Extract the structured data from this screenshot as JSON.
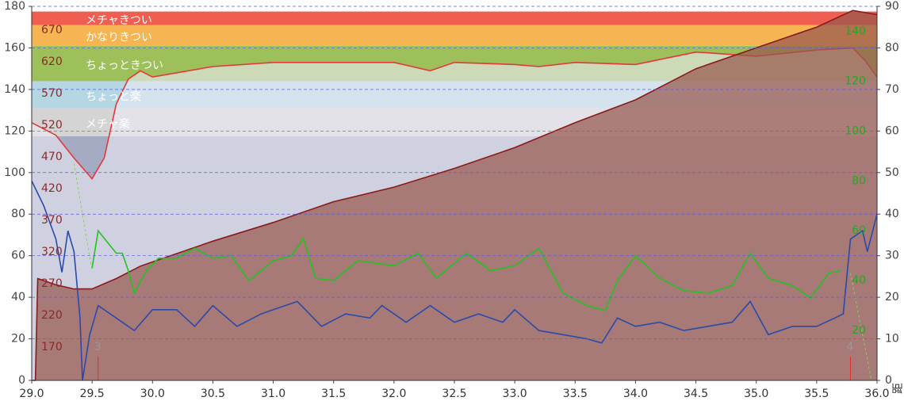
{
  "chart_data": {
    "type": "multi-line",
    "x_label": "距",
    "xlim": [
      29.0,
      36.0
    ],
    "xticks": [
      {
        "value": 29.0,
        "label": "29.0"
      },
      {
        "value": 29.5,
        "label": "29.5"
      },
      {
        "value": 30.0,
        "label": "30.0"
      },
      {
        "value": 30.5,
        "label": "30.5"
      },
      {
        "value": 31.0,
        "label": "31.0"
      },
      {
        "value": 31.5,
        "label": "31.5"
      },
      {
        "value": 32.0,
        "label": "32.0"
      },
      {
        "value": 32.5,
        "label": "32.5"
      },
      {
        "value": 33.0,
        "label": "33.0"
      },
      {
        "value": 33.5,
        "label": "33.5"
      },
      {
        "value": 34.0,
        "label": "34.0"
      },
      {
        "value": 34.5,
        "label": "34.5"
      },
      {
        "value": 35.0,
        "label": "35.0"
      },
      {
        "value": 35.5,
        "label": "35.5"
      },
      {
        "value": 36.0,
        "label": "36.0"
      }
    ],
    "ylim": [
      0,
      180
    ],
    "yticks": [
      0,
      20,
      40,
      60,
      80,
      100,
      120,
      140,
      160,
      180
    ],
    "y2lim": [
      0,
      90
    ],
    "y2ticks": [
      0,
      10,
      20,
      30,
      40,
      50,
      60,
      70,
      80,
      90
    ],
    "y3lim": [
      0,
      150
    ],
    "y3ticks": [
      20,
      40,
      60,
      80,
      100,
      120,
      140
    ],
    "y3color": "#22aa22",
    "y4lim": [
      117.5,
      707.5
    ],
    "y4ticks": [
      170,
      220,
      270,
      320,
      370,
      420,
      470,
      520,
      570,
      620,
      670
    ],
    "y4color": "#8b2a2a",
    "grid": true,
    "zones": [
      {
        "label": "メチャ楽",
        "from": 117.5,
        "to": 131,
        "color": "#d4d4d4"
      },
      {
        "label": "ちょっと楽",
        "from": 131,
        "to": 144,
        "color": "#b5d7e4"
      },
      {
        "label": "ちょっときつい",
        "from": 144,
        "to": 161,
        "color": "#9dc05a"
      },
      {
        "label": "かなりきつい",
        "from": 161,
        "to": 171,
        "color": "#f6b452"
      },
      {
        "label": "メチャきつい",
        "from": 171,
        "to": 177.5,
        "color": "#ef5e50"
      }
    ],
    "markers": [
      {
        "x": 29.55,
        "label": "3"
      },
      {
        "x": 35.78,
        "label": "4"
      }
    ],
    "series": [
      {
        "axis": "y",
        "color": "#e03a3a",
        "fill": "rgba(235,235,245,0.6)",
        "x": [
          29.0,
          29.2,
          29.35,
          29.5,
          29.6,
          29.7,
          29.8,
          29.9,
          30.0,
          30.5,
          31.0,
          31.5,
          32.0,
          32.3,
          32.5,
          33.0,
          33.2,
          33.5,
          34.0,
          34.5,
          35.0,
          35.5,
          35.8,
          35.9,
          36.0
        ],
        "values": [
          124,
          118,
          107,
          97,
          107,
          133,
          145,
          149,
          146,
          151,
          153,
          153,
          153,
          149,
          153,
          152,
          151,
          153,
          152,
          158,
          156,
          159,
          160,
          154,
          146
        ]
      },
      {
        "axis": "y",
        "color": "#8b1a1a",
        "fill": "rgba(151,88,78,0.72)",
        "x": [
          29.0,
          29.03,
          29.05,
          29.2,
          29.35,
          29.5,
          29.7,
          29.9,
          30.0,
          30.5,
          31.0,
          31.5,
          32.0,
          32.5,
          33.0,
          33.5,
          34.0,
          34.5,
          35.0,
          35.5,
          35.8,
          36.0
        ],
        "values": [
          0,
          0,
          49,
          46,
          44,
          44,
          49,
          55,
          57,
          67,
          76,
          86,
          93,
          102,
          112,
          124,
          135,
          150,
          160,
          170,
          178,
          176
        ]
      },
      {
        "axis": "y3",
        "color": "#22c322",
        "x": [
          29.5,
          29.55,
          29.6,
          29.7,
          29.75,
          29.8,
          29.85,
          29.95,
          30.05,
          30.2,
          30.35,
          30.5,
          30.65,
          30.8,
          31.0,
          31.15,
          31.25,
          31.35,
          31.5,
          31.7,
          32.0,
          32.2,
          32.35,
          32.6,
          32.8,
          33.0,
          33.2,
          33.4,
          33.6,
          33.75,
          33.85,
          34.0,
          34.2,
          34.4,
          34.6,
          34.8,
          34.95,
          35.1,
          35.3,
          35.45,
          35.6,
          35.7
        ],
        "values": [
          45,
          60,
          57,
          51,
          51,
          44,
          35,
          44,
          49,
          49,
          53,
          49,
          50,
          40,
          48,
          50,
          57,
          41,
          40,
          48,
          46,
          51,
          41,
          51,
          44,
          46,
          53,
          35,
          30,
          28,
          40,
          50,
          41,
          36,
          35,
          38,
          51,
          41,
          38,
          33,
          43,
          44
        ]
      },
      {
        "axis": "y2",
        "color": "#2a4aaa",
        "x": [
          29.0,
          29.1,
          29.2,
          29.25,
          29.3,
          29.35,
          29.4,
          29.42,
          29.48,
          29.55,
          29.7,
          29.85,
          30.0,
          30.2,
          30.35,
          30.5,
          30.7,
          30.9,
          31.0,
          31.2,
          31.4,
          31.6,
          31.8,
          31.9,
          32.1,
          32.3,
          32.5,
          32.7,
          32.9,
          33.0,
          33.2,
          33.4,
          33.6,
          33.72,
          33.85,
          34.0,
          34.2,
          34.4,
          34.6,
          34.8,
          34.95,
          35.1,
          35.3,
          35.5,
          35.65,
          35.72,
          35.78,
          35.88,
          35.92,
          36.0
        ],
        "values": [
          48,
          42,
          34,
          26,
          36,
          31,
          15,
          0,
          11,
          18,
          15,
          12,
          17,
          17,
          13,
          18,
          13,
          16,
          17,
          19,
          13,
          16,
          15,
          18,
          14,
          18,
          14,
          16,
          14,
          17,
          12,
          11,
          10,
          9,
          15,
          13,
          14,
          12,
          13,
          14,
          19,
          11,
          13,
          13,
          15,
          16,
          34,
          36,
          31,
          40
        ]
      },
      {
        "axis": "y3",
        "color": "#88d060",
        "dashed": true,
        "x": [
          29.35,
          29.5
        ],
        "values": [
          87,
          44
        ]
      },
      {
        "axis": "y3",
        "color": "#88d060",
        "dashed": true,
        "x": [
          35.78,
          35.95
        ],
        "values": [
          43,
          1
        ]
      }
    ]
  }
}
